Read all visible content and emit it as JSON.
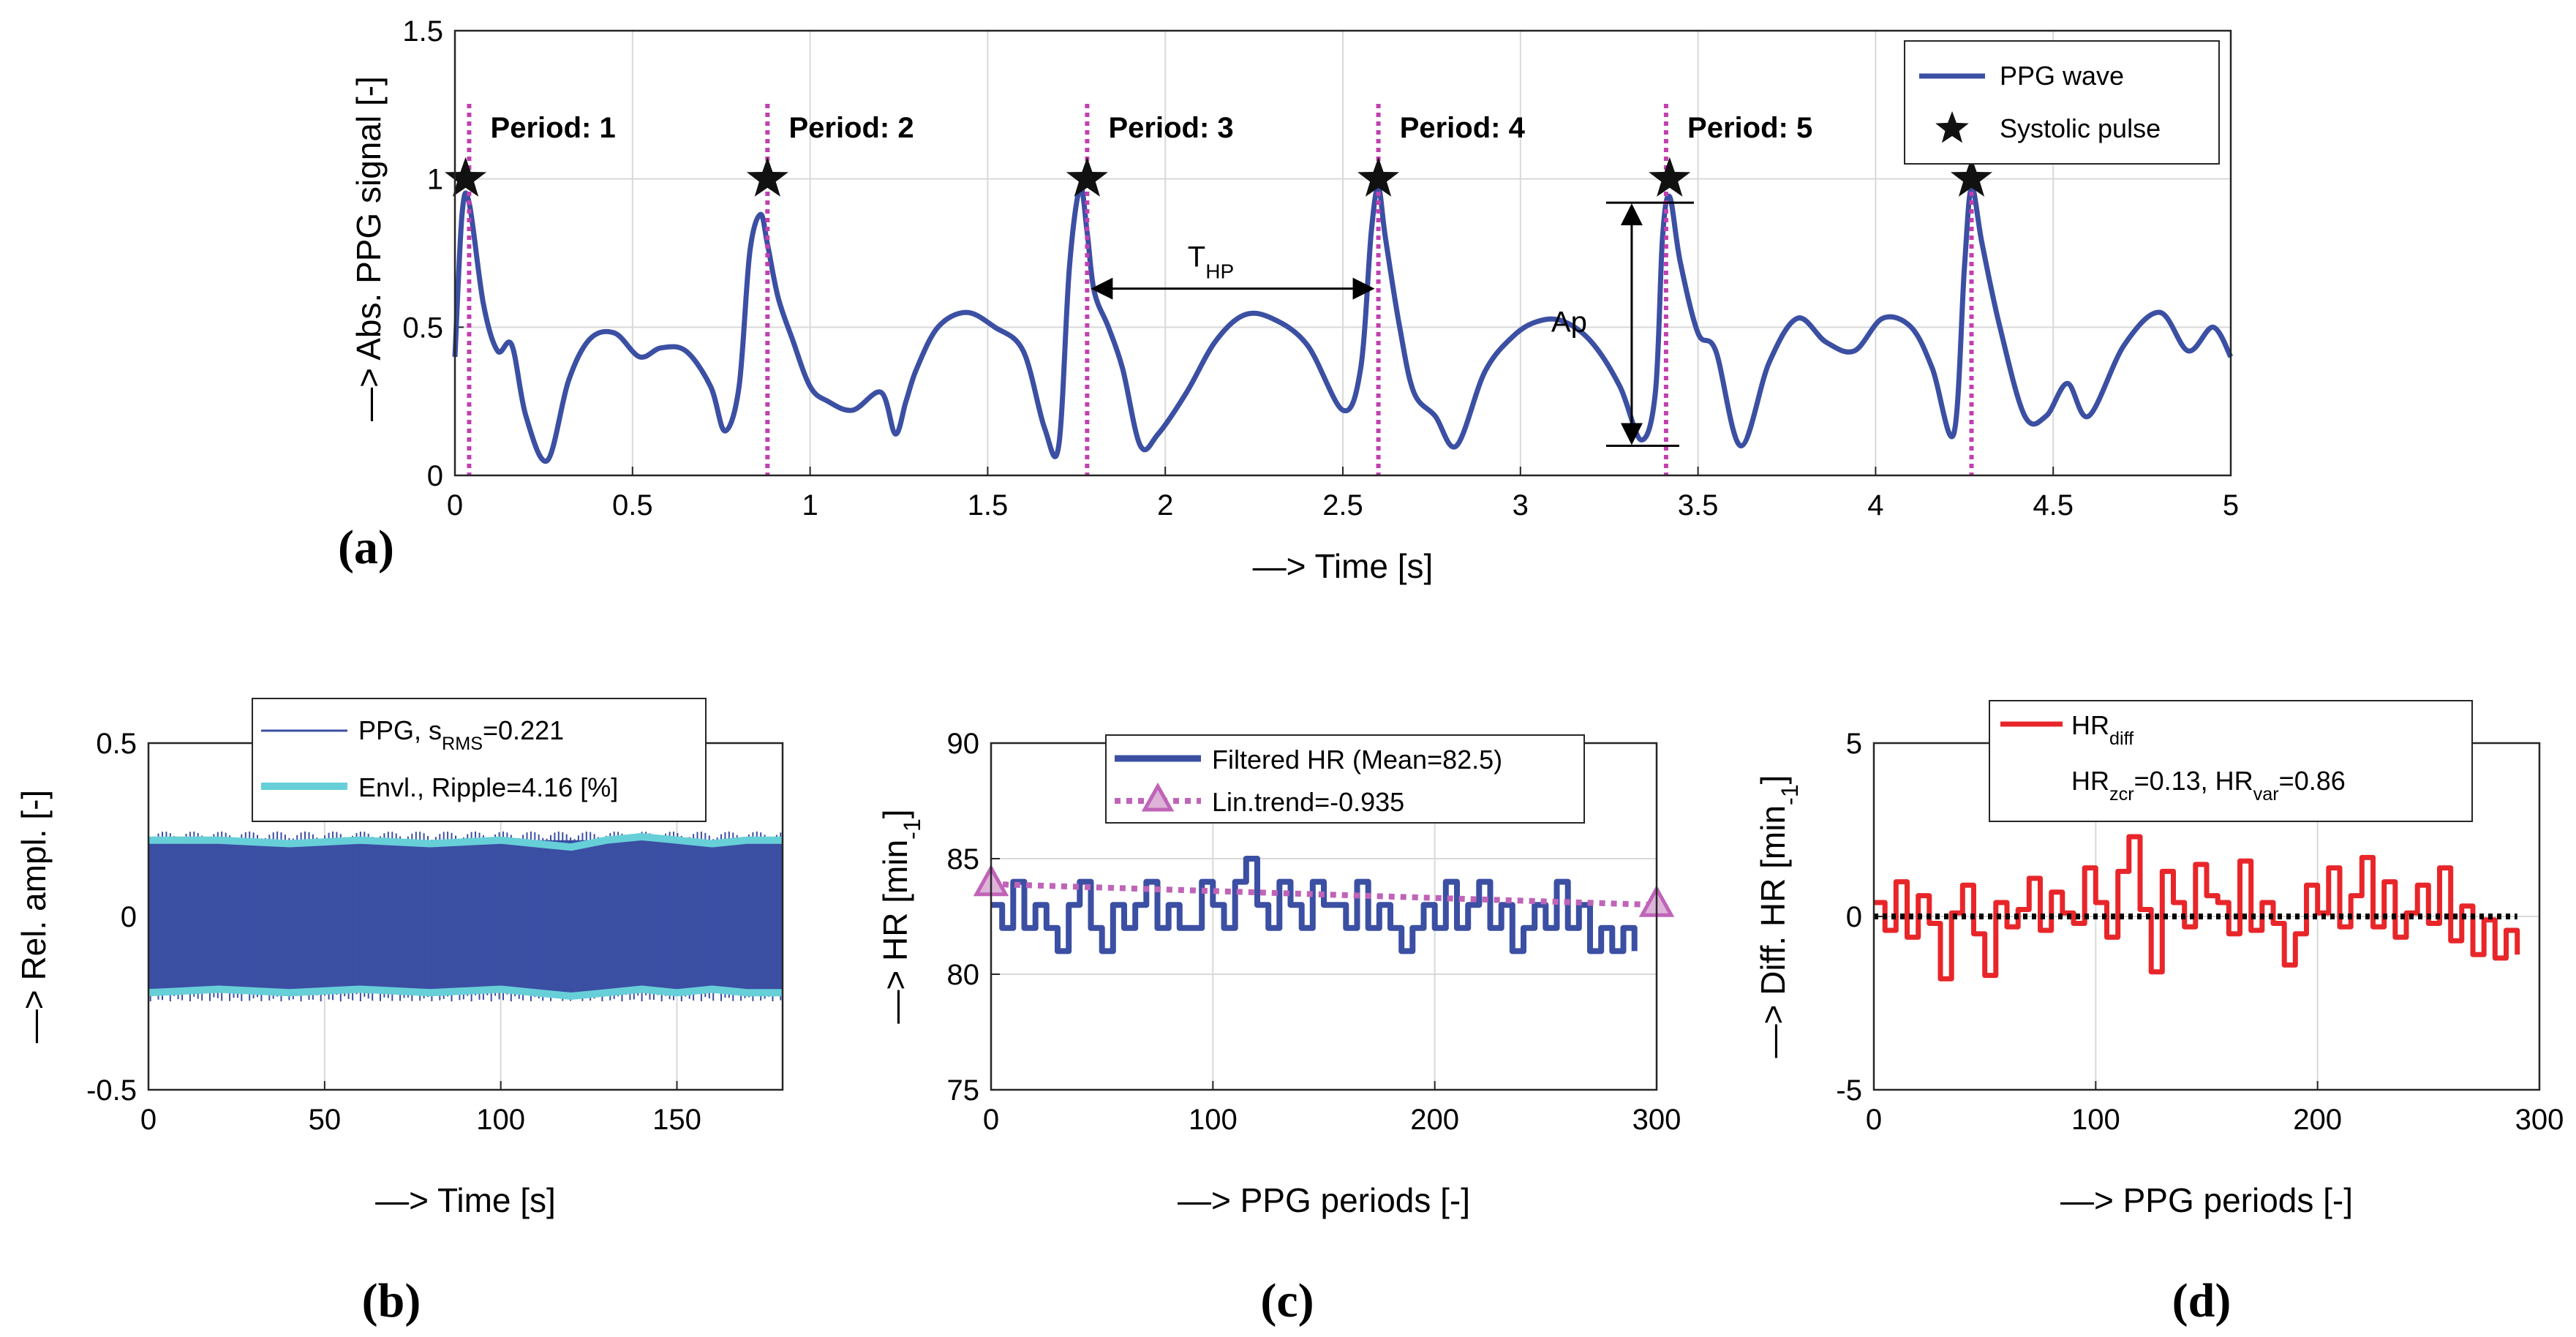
{
  "chart_data": [
    {
      "panel": "(a)",
      "type": "line",
      "xlabel": "—> Time [s]",
      "ylabel": "—> Abs. PPG signal [-]",
      "xlim": [
        0,
        5
      ],
      "ylim": [
        0,
        1.5
      ],
      "xticks": [
        "0",
        "0.5",
        "1",
        "1.5",
        "2",
        "2.5",
        "3",
        "3.5",
        "4",
        "4.5",
        "5"
      ],
      "yticks": [
        "0",
        "0.5",
        "1",
        "1.5"
      ],
      "grid": true,
      "legend": {
        "position": "top-right",
        "entries": [
          "PPG wave",
          "Systolic pulse"
        ]
      },
      "series": [
        {
          "name": "PPG wave",
          "color": "#3b4fa3",
          "x": [
            0.0,
            0.02,
            0.04,
            0.08,
            0.12,
            0.16,
            0.2,
            0.26,
            0.32,
            0.38,
            0.45,
            0.52,
            0.58,
            0.65,
            0.72,
            0.76,
            0.8,
            0.83,
            0.86,
            0.88,
            0.91,
            0.95,
            1.0,
            1.05,
            1.12,
            1.2,
            1.24,
            1.27,
            1.3,
            1.36,
            1.44,
            1.52,
            1.6,
            1.66,
            1.7,
            1.73,
            1.76,
            1.78,
            1.8,
            1.84,
            1.88,
            1.93,
            1.98,
            2.06,
            2.14,
            2.22,
            2.3,
            2.4,
            2.5,
            2.55,
            2.58,
            2.6,
            2.62,
            2.66,
            2.7,
            2.76,
            2.82,
            2.9,
            2.98,
            3.05,
            3.12,
            3.2,
            3.28,
            3.34,
            3.38,
            3.4,
            3.42,
            3.45,
            3.5,
            3.55,
            3.62,
            3.7,
            3.78,
            3.86,
            3.94,
            4.02,
            4.1,
            4.16,
            4.22,
            4.25,
            4.27,
            4.3,
            4.35,
            4.42,
            4.48,
            4.54,
            4.6,
            4.7,
            4.8,
            4.88,
            4.95,
            5.0
          ],
          "y": [
            0.4,
            0.88,
            0.92,
            0.58,
            0.42,
            0.44,
            0.2,
            0.05,
            0.32,
            0.46,
            0.48,
            0.4,
            0.43,
            0.42,
            0.3,
            0.15,
            0.3,
            0.75,
            0.88,
            0.78,
            0.6,
            0.46,
            0.3,
            0.25,
            0.22,
            0.28,
            0.14,
            0.25,
            0.36,
            0.5,
            0.55,
            0.5,
            0.42,
            0.16,
            0.1,
            0.7,
            0.97,
            0.82,
            0.62,
            0.5,
            0.36,
            0.1,
            0.14,
            0.28,
            0.45,
            0.54,
            0.53,
            0.44,
            0.22,
            0.36,
            0.82,
            0.97,
            0.8,
            0.5,
            0.28,
            0.2,
            0.1,
            0.35,
            0.47,
            0.52,
            0.52,
            0.45,
            0.3,
            0.12,
            0.28,
            0.8,
            0.94,
            0.72,
            0.48,
            0.42,
            0.1,
            0.38,
            0.53,
            0.45,
            0.42,
            0.53,
            0.5,
            0.36,
            0.14,
            0.7,
            0.97,
            0.78,
            0.5,
            0.2,
            0.2,
            0.31,
            0.2,
            0.44,
            0.55,
            0.42,
            0.5,
            0.4
          ]
        },
        {
          "name": "Systolic pulse",
          "type": "scatter",
          "marker": "star",
          "x": [
            0.03,
            0.88,
            1.78,
            2.6,
            3.42,
            4.27
          ],
          "y": [
            1.0,
            1.0,
            1.0,
            1.0,
            1.0,
            1.0
          ]
        }
      ],
      "vlines": [
        0.04,
        0.88,
        1.78,
        2.6,
        3.41,
        4.27
      ],
      "annotations": [
        {
          "text": "Period: 1",
          "x": 0.1,
          "y": 1.17
        },
        {
          "text": "Period: 2",
          "x": 0.94,
          "y": 1.17
        },
        {
          "text": "Period: 3",
          "x": 1.84,
          "y": 1.17
        },
        {
          "text": "Period: 4",
          "x": 2.66,
          "y": 1.17
        },
        {
          "text": "Period: 5",
          "x": 3.47,
          "y": 1.17
        }
      ],
      "thp": {
        "label": "T",
        "sub": "HP",
        "x1": 1.78,
        "x2": 2.6,
        "y": 0.63
      },
      "ap": {
        "label": "Ap",
        "x": 3.2,
        "y1": 0.1,
        "y2": 0.92
      }
    },
    {
      "panel": "(b)",
      "type": "line",
      "xlabel": "—> Time [s]",
      "ylabel": "—> Rel. ampl. [-]",
      "xlim": [
        0,
        180
      ],
      "ylim": [
        -0.5,
        0.5
      ],
      "xticks": [
        "0",
        "50",
        "100",
        "150"
      ],
      "yticks": [
        "-0.5",
        "0",
        "0.5"
      ],
      "grid": true,
      "legend": {
        "position": "top",
        "entries": [
          "PPG, s",
          "RMS",
          "=0.221",
          "Envl., Ripple=4.16 [%]"
        ]
      },
      "series": [
        {
          "name": "PPG",
          "color": "#3b4fa3",
          "band": [
            -0.22,
            0.22
          ]
        },
        {
          "name": "Envl.",
          "color": "#67cfd8",
          "x": [
            0,
            20,
            40,
            60,
            80,
            100,
            110,
            120,
            130,
            140,
            150,
            160,
            170,
            180
          ],
          "upper": [
            0.22,
            0.22,
            0.21,
            0.22,
            0.21,
            0.22,
            0.21,
            0.2,
            0.22,
            0.23,
            0.22,
            0.21,
            0.22,
            0.22
          ],
          "lower": [
            -0.22,
            -0.21,
            -0.22,
            -0.21,
            -0.22,
            -0.21,
            -0.22,
            -0.23,
            -0.22,
            -0.21,
            -0.22,
            -0.21,
            -0.22,
            -0.22
          ]
        }
      ]
    },
    {
      "panel": "(c)",
      "type": "line",
      "xlabel": "—> PPG periods [-]",
      "ylabel": "—> HR [min",
      "ylabel_sub": "-1",
      "ylabel_end": "]",
      "xlim": [
        0,
        300
      ],
      "ylim": [
        75,
        90
      ],
      "xticks": [
        "0",
        "100",
        "200",
        "300"
      ],
      "yticks": [
        "75",
        "80",
        "85",
        "90"
      ],
      "grid": true,
      "legend": {
        "position": "top",
        "entries": [
          "Filtered HR (Mean=82.5)",
          "Lin.trend=-0.935"
        ]
      },
      "series": [
        {
          "name": "Filtered HR (Mean=82.5)",
          "color": "#3b4fa3",
          "x": [
            0,
            5,
            10,
            15,
            20,
            25,
            30,
            35,
            40,
            45,
            50,
            55,
            60,
            65,
            70,
            75,
            80,
            85,
            90,
            95,
            100,
            105,
            110,
            115,
            120,
            125,
            130,
            135,
            140,
            145,
            150,
            155,
            160,
            165,
            170,
            175,
            180,
            185,
            190,
            195,
            200,
            205,
            210,
            215,
            220,
            225,
            230,
            235,
            240,
            245,
            250,
            255,
            260,
            265,
            270,
            275,
            280,
            285,
            290
          ],
          "y": [
            83,
            82,
            84,
            82,
            83,
            82,
            81,
            83,
            84,
            82,
            81,
            83,
            82,
            83,
            84,
            82,
            83,
            82,
            82,
            84,
            83,
            82,
            84,
            85,
            83,
            82,
            84,
            83,
            82,
            84,
            83,
            83,
            82,
            84,
            82,
            83,
            82,
            81,
            82,
            83,
            82,
            84,
            82,
            83,
            84,
            82,
            83,
            81,
            82,
            83,
            82,
            84,
            82,
            83,
            81,
            82,
            81,
            82,
            81
          ]
        },
        {
          "name": "Lin.trend=-0.935",
          "color": "#c064b8",
          "x": [
            0,
            300
          ],
          "y": [
            83.9,
            83.0
          ]
        }
      ]
    },
    {
      "panel": "(d)",
      "type": "line",
      "xlabel": "—> PPG periods [-]",
      "ylabel": "—> Diff. HR [min",
      "ylabel_sub": "-1",
      "ylabel_end": "]",
      "xlim": [
        0,
        300
      ],
      "ylim": [
        -5,
        5
      ],
      "xticks": [
        "0",
        "100",
        "200",
        "300"
      ],
      "yticks": [
        "-5",
        "0",
        "5"
      ],
      "grid": true,
      "legend": {
        "position": "top",
        "entries": [
          "HR",
          "diff",
          "HR",
          "zcr",
          "=0.13, HR",
          "var",
          "=0.86"
        ]
      },
      "series": [
        {
          "name": "HR diff",
          "color": "#e8262a",
          "x": [
            0,
            5,
            10,
            15,
            20,
            25,
            30,
            35,
            40,
            45,
            50,
            55,
            60,
            65,
            70,
            75,
            80,
            85,
            90,
            95,
            100,
            105,
            110,
            115,
            120,
            125,
            130,
            135,
            140,
            145,
            150,
            155,
            160,
            165,
            170,
            175,
            180,
            185,
            190,
            195,
            200,
            205,
            210,
            215,
            220,
            225,
            230,
            235,
            240,
            245,
            250,
            255,
            260,
            265,
            270,
            275,
            280,
            285,
            290
          ],
          "y": [
            0.4,
            -0.4,
            1.0,
            -0.6,
            0.6,
            -0.2,
            -1.8,
            0.1,
            0.9,
            -0.5,
            -1.7,
            0.4,
            -0.3,
            0.2,
            1.1,
            -0.4,
            0.7,
            0.1,
            -0.2,
            1.4,
            0.4,
            -0.6,
            1.3,
            2.3,
            0.2,
            -1.6,
            1.3,
            0.4,
            -0.3,
            1.5,
            0.6,
            0.4,
            -0.5,
            1.6,
            -0.4,
            0.4,
            -0.2,
            -1.4,
            -0.5,
            0.9,
            0.1,
            1.4,
            -0.3,
            0.6,
            1.7,
            -0.3,
            1.0,
            -0.6,
            0.1,
            0.9,
            -0.2,
            1.4,
            -0.7,
            0.3,
            -1.1,
            -0.1,
            -1.2,
            -0.4,
            -1.1
          ]
        },
        {
          "name": "zero",
          "color": "#000000",
          "x": [
            0,
            290
          ],
          "y": [
            0,
            0
          ]
        }
      ]
    }
  ],
  "panel_labels": [
    "(a)",
    "(b)",
    "(c)",
    "(d)"
  ]
}
